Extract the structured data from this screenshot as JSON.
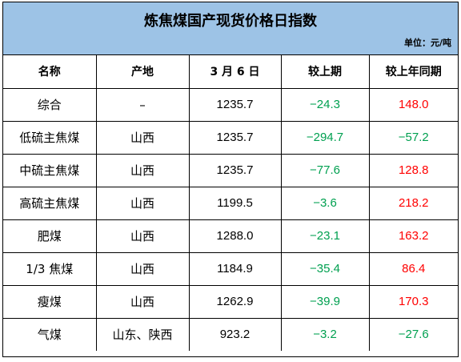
{
  "title": "炼焦煤国产现货价格日指数",
  "unit": "单位：元/吨",
  "headers": [
    "名称",
    "产地",
    "3 月 6 日",
    "较上期",
    "较上年同期"
  ],
  "rows": [
    {
      "name": "综合",
      "origin": "–",
      "price": "1235.7",
      "chg_prev": "−24.3",
      "chg_year": "148.0"
    },
    {
      "name": "低硫主焦煤",
      "origin": "山西",
      "price": "1235.7",
      "chg_prev": "−294.7",
      "chg_year": "−57.2"
    },
    {
      "name": "中硫主焦煤",
      "origin": "山西",
      "price": "1235.7",
      "chg_prev": "−77.6",
      "chg_year": "128.8"
    },
    {
      "name": "高硫主焦煤",
      "origin": "山西",
      "price": "1199.5",
      "chg_prev": "−3.6",
      "chg_year": "218.2"
    },
    {
      "name": "肥煤",
      "origin": "山西",
      "price": "1288.0",
      "chg_prev": "−23.1",
      "chg_year": "163.2"
    },
    {
      "name": "1/3 焦煤",
      "origin": "山西",
      "price": "1184.9",
      "chg_prev": "−35.4",
      "chg_year": "86.4"
    },
    {
      "name": "瘦煤",
      "origin": "山西",
      "price": "1262.9",
      "chg_prev": "−39.9",
      "chg_year": "170.3"
    },
    {
      "name": "气煤",
      "origin": "山东、陕西",
      "price": "923.2",
      "chg_prev": "−3.2",
      "chg_year": "−27.6"
    }
  ],
  "colors": {
    "header_bg": "#9dc3e6",
    "positive": "#ff0000",
    "negative": "#00a050"
  }
}
